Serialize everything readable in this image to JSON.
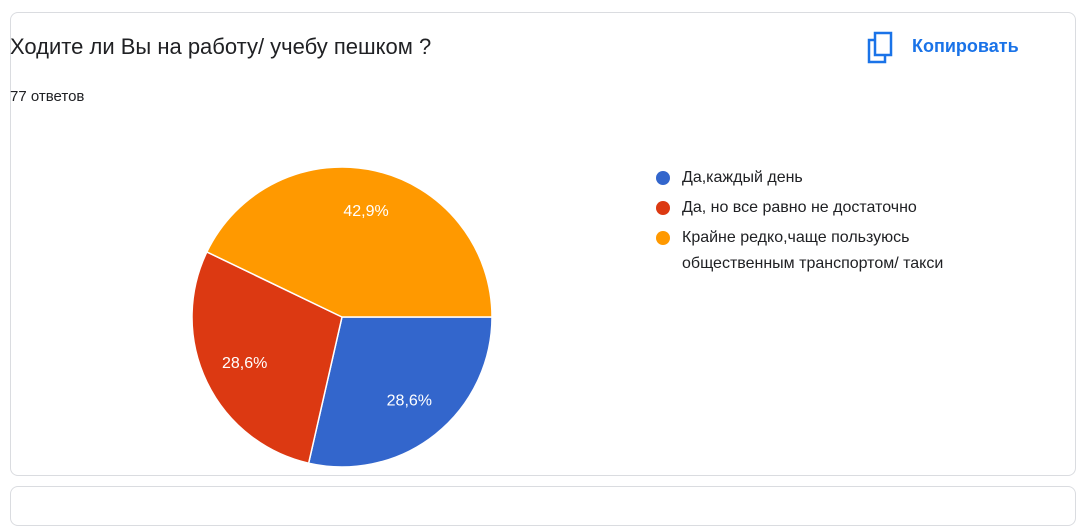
{
  "chart_data": {
    "type": "pie",
    "title": "Ходите ли Вы на работу/ учебу пешком ?",
    "subtitle": "77 ответов",
    "copy_button": "Копировать",
    "legend": "right",
    "series": [
      {
        "name": "Да,каждый день",
        "color": "#3366cc",
        "values": [
          28.6
        ],
        "value_labels": [
          "28,6%"
        ]
      },
      {
        "name": "Да, но все равно не достаточно",
        "color": "#dc3912",
        "values": [
          28.6
        ],
        "value_labels": [
          "28,6%"
        ]
      },
      {
        "name": "Крайне редко,чаще пользуюсь общественным транспортом/ такси",
        "color": "#ff9900",
        "values": [
          42.9
        ],
        "value_labels": [
          "42,9%"
        ]
      }
    ]
  }
}
